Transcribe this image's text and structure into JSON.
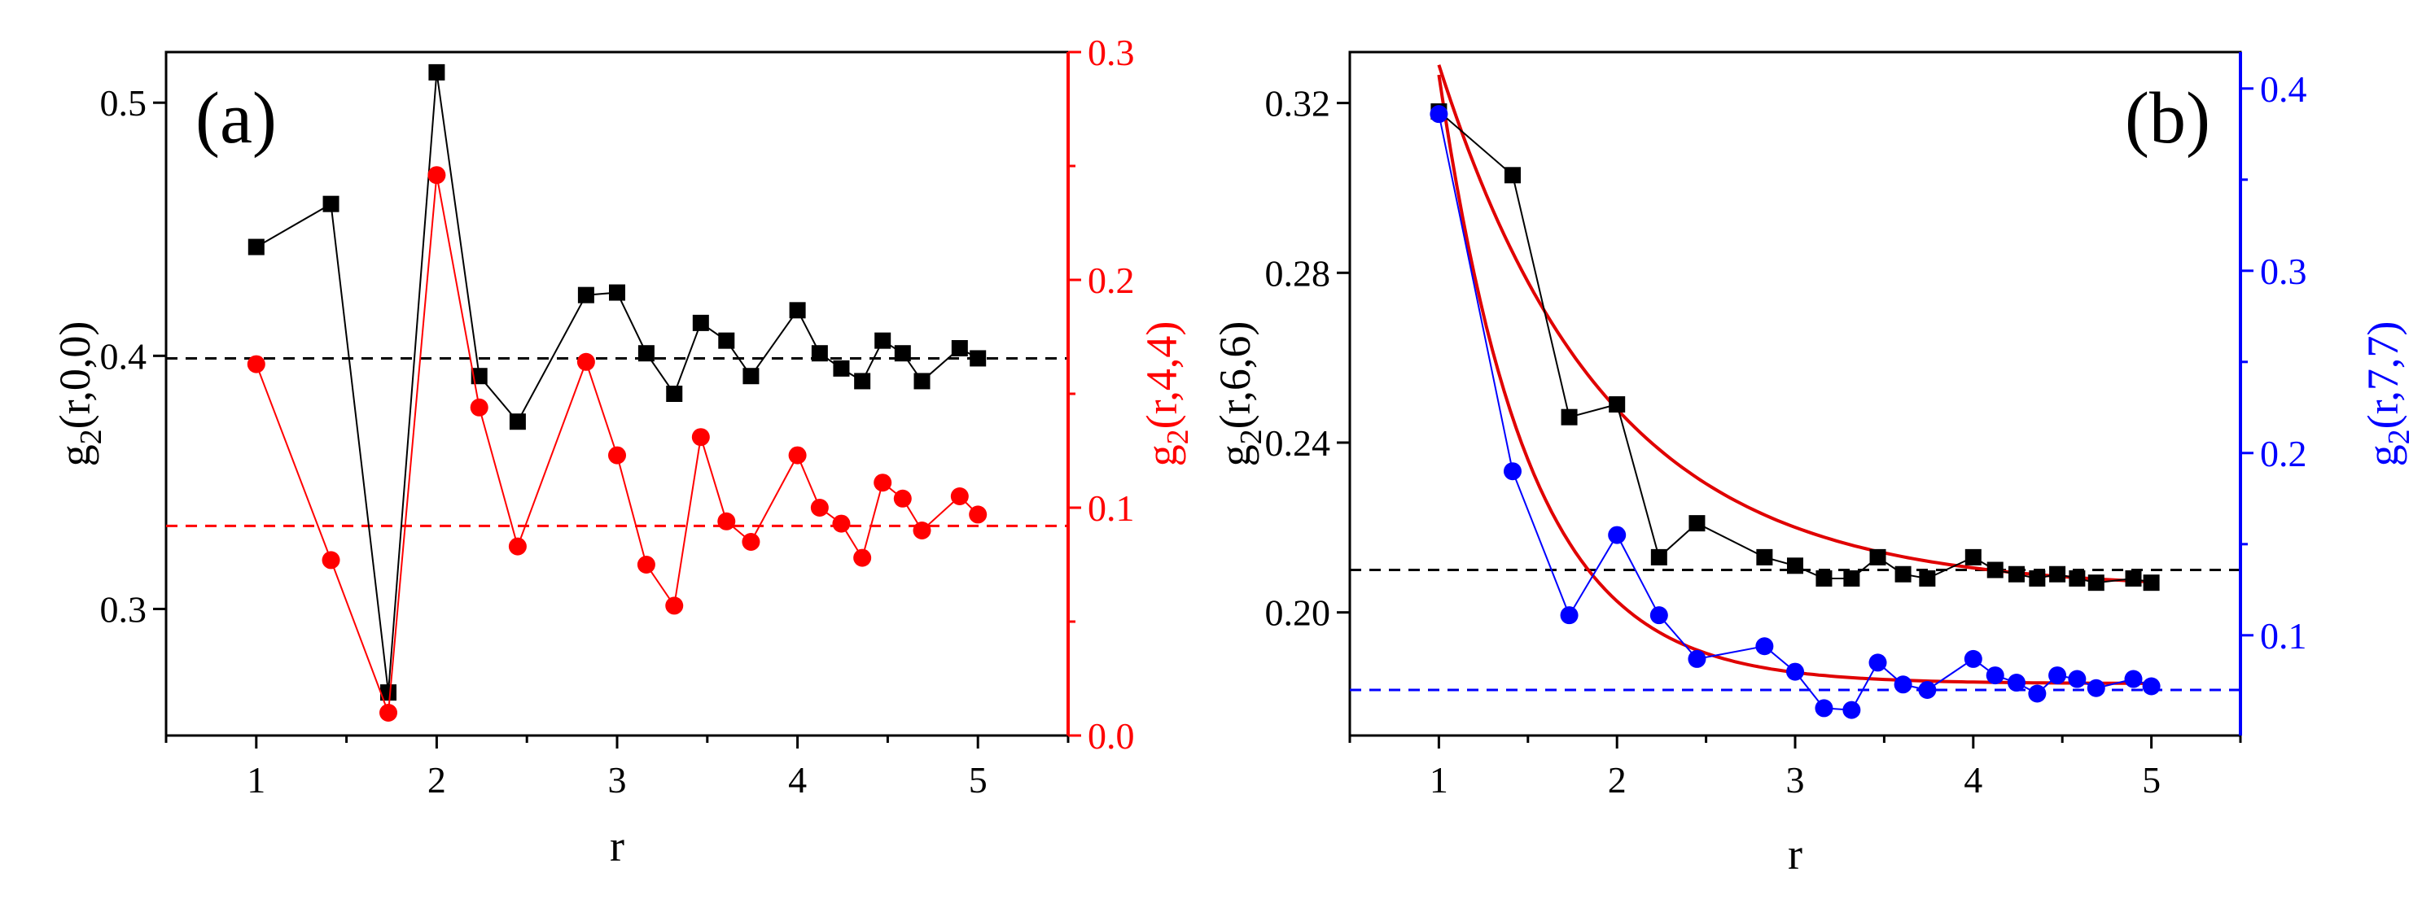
{
  "chart_data": [
    {
      "type": "scatter",
      "panel_label": "(a)",
      "xlabel": "r",
      "ylabel": {
        "main": "g",
        "sub": "2",
        "rest": "(r,0,0)"
      },
      "y2label": {
        "main": "g",
        "sub": "2",
        "rest": "(r,4,4)"
      },
      "xlim": [
        0.5,
        5.5
      ],
      "ylim": [
        0.25,
        0.52
      ],
      "y2lim": [
        0.0,
        0.3
      ],
      "xticks": [
        1,
        2,
        3,
        4,
        5
      ],
      "xtick_labels": [
        "1",
        "2",
        "3",
        "4",
        "5"
      ],
      "yticks": [
        0.3,
        0.4,
        0.5
      ],
      "ytick_labels": [
        "0.3",
        "0.4",
        "0.5"
      ],
      "y2ticks": [
        0.0,
        0.1,
        0.2,
        0.3
      ],
      "y2tick_labels": [
        "0.0",
        "0.1",
        "0.2",
        "0.3"
      ],
      "colors": {
        "left": "#000000",
        "right": "#ff0000",
        "fit": "#e00000"
      },
      "series": [
        {
          "name": "g2(r,0,0)",
          "axis": "left",
          "marker": "square",
          "color": "#000000",
          "x": [
            1.0,
            1.414,
            1.732,
            2.0,
            2.236,
            2.449,
            2.828,
            3.0,
            3.162,
            3.317,
            3.464,
            3.606,
            3.742,
            4.0,
            4.123,
            4.243,
            4.359,
            4.472,
            4.583,
            4.69,
            4.899,
            5.0
          ],
          "y": [
            0.443,
            0.46,
            0.267,
            0.512,
            0.392,
            0.374,
            0.424,
            0.425,
            0.401,
            0.385,
            0.413,
            0.406,
            0.392,
            0.418,
            0.401,
            0.395,
            0.39,
            0.406,
            0.401,
            0.39,
            0.403,
            0.399
          ]
        },
        {
          "name": "g2(r,4,4)",
          "axis": "right",
          "marker": "circle",
          "color": "#ff0000",
          "x": [
            1.0,
            1.414,
            1.732,
            2.0,
            2.236,
            2.449,
            2.828,
            3.0,
            3.162,
            3.317,
            3.464,
            3.606,
            3.742,
            4.0,
            4.123,
            4.243,
            4.359,
            4.472,
            4.583,
            4.69,
            4.899,
            5.0
          ],
          "y": [
            0.163,
            0.077,
            0.01,
            0.246,
            0.144,
            0.083,
            0.164,
            0.123,
            0.075,
            0.057,
            0.131,
            0.094,
            0.085,
            0.123,
            0.1,
            0.093,
            0.078,
            0.111,
            0.104,
            0.09,
            0.105,
            0.097
          ]
        }
      ],
      "reference_lines": [
        {
          "axis": "left",
          "y": 0.399,
          "color": "#000000",
          "style": "dashed"
        },
        {
          "axis": "right",
          "y": 0.092,
          "color": "#ff0000",
          "style": "dashed"
        }
      ],
      "fits": []
    },
    {
      "type": "scatter",
      "panel_label": "(b)",
      "xlabel": "r",
      "ylabel": {
        "main": "g",
        "sub": "2",
        "rest": "(r,6,6)"
      },
      "y2label": {
        "main": "g",
        "sub": "2",
        "rest": "(r,7,7)"
      },
      "xlim": [
        0.5,
        5.5
      ],
      "ylim": [
        0.171,
        0.332
      ],
      "y2lim": [
        0.045,
        0.42
      ],
      "xticks": [
        1,
        2,
        3,
        4,
        5
      ],
      "xtick_labels": [
        "1",
        "2",
        "3",
        "4",
        "5"
      ],
      "yticks": [
        0.2,
        0.24,
        0.28,
        0.32
      ],
      "ytick_labels": [
        "0.20",
        "0.24",
        "0.28",
        "0.32"
      ],
      "y2ticks": [
        0.1,
        0.2,
        0.3,
        0.4
      ],
      "y2tick_labels": [
        "0.1",
        "0.2",
        "0.3",
        "0.4"
      ],
      "colors": {
        "left": "#000000",
        "right": "#0000ff",
        "fit": "#e00000"
      },
      "series": [
        {
          "name": "g2(r,6,6)",
          "axis": "left",
          "marker": "square",
          "color": "#000000",
          "x": [
            1.0,
            1.414,
            1.732,
            2.0,
            2.236,
            2.449,
            2.828,
            3.0,
            3.162,
            3.317,
            3.464,
            3.606,
            3.742,
            4.0,
            4.123,
            4.243,
            4.359,
            4.472,
            4.583,
            4.69,
            4.899,
            5.0
          ],
          "y": [
            0.318,
            0.303,
            0.246,
            0.249,
            0.213,
            0.221,
            0.213,
            0.211,
            0.208,
            0.208,
            0.213,
            0.209,
            0.208,
            0.213,
            0.21,
            0.209,
            0.208,
            0.209,
            0.208,
            0.207,
            0.208,
            0.207
          ]
        },
        {
          "name": "g2(r,7,7)",
          "axis": "right",
          "marker": "circle",
          "color": "#0000ff",
          "x": [
            1.0,
            1.414,
            1.732,
            2.0,
            2.236,
            2.449,
            2.828,
            3.0,
            3.162,
            3.317,
            3.464,
            3.606,
            3.742,
            4.0,
            4.123,
            4.243,
            4.359,
            4.472,
            4.583,
            4.69,
            4.899,
            5.0
          ],
          "y": [
            0.386,
            0.19,
            0.111,
            0.155,
            0.111,
            0.087,
            0.094,
            0.08,
            0.06,
            0.059,
            0.085,
            0.073,
            0.07,
            0.087,
            0.078,
            0.074,
            0.068,
            0.078,
            0.076,
            0.071,
            0.076,
            0.072
          ]
        }
      ],
      "reference_lines": [
        {
          "axis": "left",
          "y": 0.21,
          "color": "#000000",
          "style": "dashed"
        },
        {
          "axis": "right",
          "y": 0.07,
          "color": "#0000ff",
          "style": "dashed"
        }
      ],
      "fits": [
        {
          "axis": "left",
          "form": "exponential",
          "y_inf": 0.2055,
          "amplitude": 0.1235,
          "decay": 0.935,
          "x_start": 1.0,
          "x_end": 5.0,
          "y_at_start": 0.329,
          "color": "#e00000"
        },
        {
          "axis": "right",
          "form": "exponential",
          "y_inf": 0.0735,
          "amplitude": 0.334,
          "decay": 0.5,
          "x_start": 1.0,
          "x_end": 5.0,
          "y_at_start": 0.4075,
          "color": "#e00000"
        }
      ]
    }
  ]
}
